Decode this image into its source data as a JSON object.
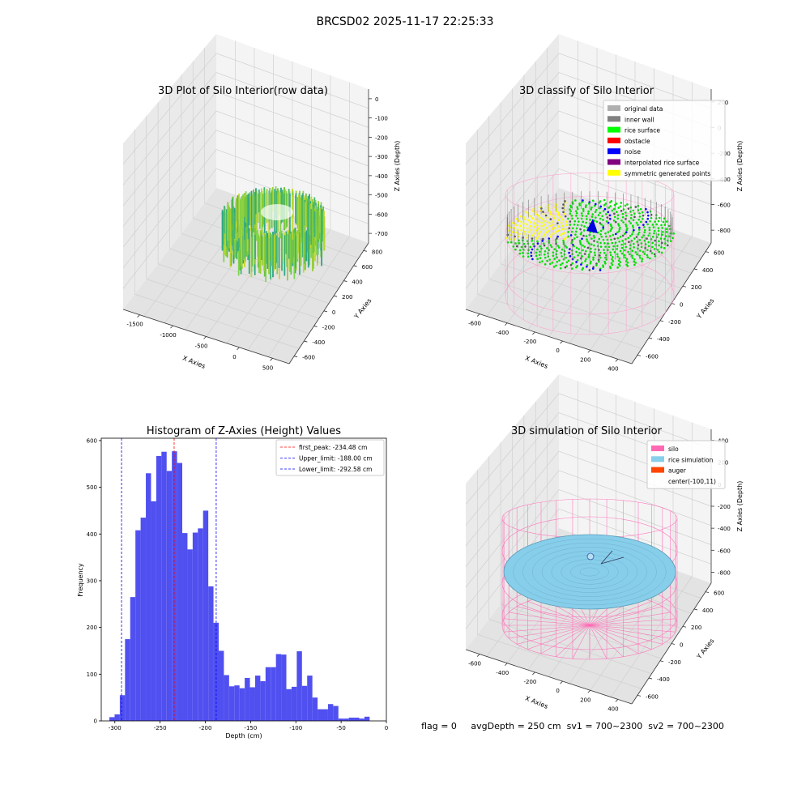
{
  "figure_title": "BRCSD02 2025-11-17 22:25:33",
  "panels": {
    "raw": {
      "title": "3D Plot of Silo Interior(row data)",
      "xlabel": "X Axies",
      "ylabel": "Y Axies",
      "zlabel": "Z Axies (Depth)",
      "xticks": [
        "-1500",
        "-1000",
        "-500",
        "0",
        "500"
      ],
      "yticks": [
        "-600",
        "-400",
        "-200",
        "0",
        "200",
        "400",
        "600",
        "800"
      ],
      "zticks": [
        "0",
        "-100",
        "-200",
        "-300",
        "-400",
        "-500",
        "-600",
        "-700"
      ]
    },
    "classify": {
      "title": "3D classify of Silo Interior",
      "xlabel": "X Axies",
      "ylabel": "Y Axies",
      "zlabel": "Z Axies (Depth)",
      "xticks": [
        "-600",
        "-400",
        "-200",
        "0",
        "200",
        "400"
      ],
      "yticks": [
        "-600",
        "-400",
        "-200",
        "0",
        "200",
        "400",
        "600"
      ],
      "zticks": [
        "200",
        "0",
        "-200",
        "-400",
        "-600",
        "-800"
      ],
      "legend": [
        {
          "label": "original data",
          "color": "#b0b0b0"
        },
        {
          "label": "inner wall",
          "color": "#808080"
        },
        {
          "label": "rice surface",
          "color": "#00ff00"
        },
        {
          "label": "obstacle",
          "color": "#ff0000"
        },
        {
          "label": "noise",
          "color": "#0000ff"
        },
        {
          "label": "interpolated rice surface",
          "color": "#800080"
        },
        {
          "label": "symmetric generated points",
          "color": "#ffff00"
        }
      ]
    },
    "simulation": {
      "title": "3D simulation of Silo Interior",
      "xlabel": "X Axies",
      "ylabel": "Y Axies",
      "zlabel": "Z Axies (Depth)",
      "xticks": [
        "-600",
        "-400",
        "-200",
        "0",
        "200",
        "400"
      ],
      "yticks": [
        "-600",
        "-400",
        "-200",
        "0",
        "200",
        "400",
        "600"
      ],
      "zticks": [
        "400",
        "200",
        "0",
        "-200",
        "-400",
        "-600",
        "-800"
      ],
      "legend": [
        {
          "label": "silo",
          "color": "#ff69b4"
        },
        {
          "label": "rice simulation",
          "color": "#87ceeb"
        },
        {
          "label": "auger",
          "color": "#ff4500"
        },
        {
          "label": "center(-100,11)",
          "color": ""
        }
      ]
    }
  },
  "status_text": "flag = 0     avgDepth = 250 cm  sv1 = 700~2300  sv2 = 700~2300",
  "colors": {
    "hist_bar": "#5050f0",
    "peak_line": "#ff0000",
    "limit_line": "#0000ff"
  },
  "chart_data": [
    {
      "type": "bar",
      "subtype": "histogram",
      "title": "Histogram of Z-Axies (Height) Values",
      "xlabel": "Depth (cm)",
      "ylabel": "Frequency",
      "xlim": [
        -315,
        0
      ],
      "ylim": [
        0,
        605
      ],
      "xticks": [
        -300,
        -250,
        -200,
        -150,
        -100,
        -50,
        0
      ],
      "yticks": [
        0,
        100,
        200,
        300,
        400,
        500,
        600
      ],
      "bin_start": -306,
      "bin_width": 5.75,
      "values": [
        8,
        14,
        55,
        175,
        265,
        408,
        435,
        530,
        470,
        567,
        576,
        535,
        577,
        552,
        402,
        367,
        403,
        412,
        450,
        288,
        210,
        150,
        98,
        74,
        76,
        70,
        92,
        72,
        97,
        85,
        115,
        115,
        143,
        142,
        68,
        73,
        149,
        75,
        97,
        50,
        25,
        25,
        36,
        32,
        5,
        5,
        7,
        7,
        5,
        9
      ],
      "vlines": [
        {
          "x": -234.48,
          "label": "first_peak: -234.48 cm",
          "color": "#ff0000"
        },
        {
          "x": -188.0,
          "label": "Upper_limit: -188.00 cm",
          "color": "#0000ff"
        },
        {
          "x": -292.58,
          "label": "Lower_limit: -292.58 cm",
          "color": "#0000ff"
        }
      ],
      "legend_position": "upper right",
      "grid": false
    }
  ]
}
